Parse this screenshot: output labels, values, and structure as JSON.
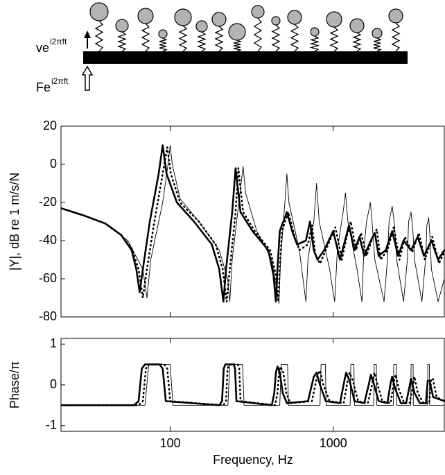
{
  "schematic": {
    "velocity_label": {
      "base": "ve",
      "sup": "i2πft"
    },
    "force_label": {
      "base": "Fe",
      "sup": "i2πft"
    }
  },
  "chart_data": [
    {
      "type": "line",
      "ylabel": "|Y|, dB re 1 m/s/N",
      "log_x": true,
      "show_xtick_labels": false,
      "xlim": [
        21.4,
        4800
      ],
      "ylim": [
        -80,
        20
      ],
      "xticks": [
        100,
        1000
      ],
      "yticks": [
        20,
        0,
        -20,
        -40,
        -60,
        -80
      ],
      "series": [
        {
          "color": "#000000",
          "line_width": 2.6,
          "dash": "none",
          "x": [
            21.4,
            30,
            40,
            50,
            58,
            62,
            65,
            68,
            75,
            85,
            90,
            95,
            110,
            140,
            180,
            200,
            212,
            220,
            240,
            252,
            258,
            270,
            320,
            400,
            430,
            445,
            455,
            470,
            520,
            560,
            600,
            680,
            720,
            760,
            800,
            880,
            1000,
            1100,
            1180,
            1250,
            1350,
            1450,
            1550,
            1700,
            1800,
            1900,
            2100,
            2300,
            2500,
            2700,
            3000,
            3300,
            3600,
            4000,
            4400,
            4800
          ],
          "values": [
            -23,
            -27,
            -31,
            -37,
            -45,
            -55,
            -67,
            -55,
            -30,
            -5,
            10,
            -5,
            -20,
            -30,
            -42,
            -55,
            -72,
            -55,
            -25,
            -2,
            -10,
            -25,
            -35,
            -45,
            -58,
            -72,
            -55,
            -35,
            -25,
            -35,
            -42,
            -40,
            -30,
            -45,
            -50,
            -45,
            -35,
            -50,
            -40,
            -32,
            -45,
            -38,
            -48,
            -40,
            -36,
            -48,
            -45,
            -35,
            -48,
            -40,
            -45,
            -38,
            -48,
            -40,
            -50,
            -45
          ]
        },
        {
          "color": "#000000",
          "line_width": 2.6,
          "dash": "1 5",
          "x": [
            21.4,
            30,
            40,
            50,
            58,
            64,
            68,
            72,
            80,
            90,
            96,
            101,
            115,
            150,
            190,
            210,
            222,
            232,
            252,
            262,
            268,
            280,
            330,
            410,
            445,
            460,
            470,
            485,
            530,
            580,
            620,
            700,
            740,
            780,
            830,
            900,
            1030,
            1130,
            1210,
            1280,
            1380,
            1480,
            1600,
            1750,
            1850,
            1950,
            2150,
            2350,
            2550,
            2750,
            3050,
            3350,
            3650,
            4050,
            4450,
            4800
          ],
          "values": [
            -23,
            -27,
            -31,
            -37,
            -44,
            -55,
            -70,
            -55,
            -30,
            -5,
            9,
            -5,
            -20,
            -30,
            -42,
            -55,
            -72,
            -55,
            -25,
            -2,
            -10,
            -25,
            -35,
            -45,
            -58,
            -72,
            -55,
            -35,
            -25,
            -38,
            -45,
            -42,
            -32,
            -48,
            -52,
            -45,
            -33,
            -50,
            -38,
            -30,
            -45,
            -36,
            -48,
            -38,
            -34,
            -50,
            -45,
            -33,
            -50,
            -38,
            -46,
            -36,
            -50,
            -38,
            -52,
            -46
          ]
        },
        {
          "color": "#000000",
          "line_width": 0.9,
          "dash": "none",
          "x": [
            21.4,
            40,
            55,
            68,
            72,
            76,
            90,
            97,
            100,
            103,
            115,
            150,
            200,
            225,
            232,
            240,
            268,
            280,
            290,
            340,
            420,
            465,
            475,
            505,
            520,
            535,
            620,
            680,
            700,
            760,
            790,
            820,
            950,
            1020,
            1060,
            1150,
            1190,
            1230,
            1400,
            1500,
            1540,
            1600,
            1690,
            1730,
            1800,
            2050,
            2150,
            2200,
            2300,
            2380,
            2450,
            2700,
            2850,
            2900,
            3000,
            3080,
            3150,
            3500,
            3700,
            3750,
            3850,
            3920,
            4000,
            4400,
            4800
          ],
          "values": [
            -23,
            -31,
            -40,
            -55,
            -70,
            -50,
            -20,
            0,
            10,
            0,
            -18,
            -30,
            -45,
            -60,
            -72,
            -50,
            -15,
            -1,
            -15,
            -35,
            -50,
            -73,
            -50,
            -20,
            -5,
            -20,
            -45,
            -72,
            -50,
            -30,
            -10,
            -30,
            -55,
            -72,
            -45,
            -25,
            -15,
            -30,
            -55,
            -72,
            -45,
            -30,
            -20,
            -30,
            -50,
            -72,
            -50,
            -30,
            -22,
            -32,
            -50,
            -72,
            -50,
            -30,
            -25,
            -35,
            -50,
            -72,
            -48,
            -32,
            -28,
            -38,
            -55,
            -72,
            -60
          ]
        }
      ]
    },
    {
      "type": "line",
      "ylabel": "Phase/π",
      "xlabel": "Frequency, Hz",
      "log_x": true,
      "show_xtick_labels": true,
      "xlim": [
        21.4,
        4800
      ],
      "ylim": [
        -1.14,
        1.14
      ],
      "xticks": [
        100,
        1000
      ],
      "yticks": [
        1,
        0,
        -1
      ],
      "series": [
        {
          "color": "#000000",
          "line_width": 2.6,
          "dash": "none",
          "x": [
            21.4,
            60,
            64,
            67,
            70,
            86,
            90,
            94,
            200,
            208,
            213,
            218,
            245,
            250,
            255,
            420,
            435,
            445,
            455,
            470,
            490,
            520,
            700,
            760,
            790,
            830,
            900,
            1100,
            1170,
            1200,
            1260,
            1350,
            1550,
            1650,
            1700,
            1780,
            1900,
            2150,
            2250,
            2300,
            2400,
            2600,
            2800,
            2950,
            3000,
            3150,
            3400,
            3700,
            3800,
            3900,
            4100,
            4800
          ],
          "values": [
            -0.5,
            -0.5,
            -0.4,
            0.4,
            0.5,
            0.5,
            0.4,
            -0.4,
            -0.5,
            -0.4,
            0.4,
            0.5,
            0.5,
            0.4,
            -0.4,
            -0.5,
            -0.2,
            0.3,
            0.45,
            0.3,
            -0.2,
            -0.45,
            -0.4,
            0.2,
            0.3,
            0,
            -0.4,
            -0.45,
            0.1,
            0.3,
            0.1,
            -0.4,
            -0.45,
            0,
            0.25,
            0,
            -0.4,
            -0.45,
            0.05,
            0.2,
            -0.1,
            -0.45,
            -0.45,
            0,
            0.15,
            -0.2,
            -0.45,
            -0.45,
            0.1,
            0.1,
            -0.3,
            -0.4
          ]
        },
        {
          "color": "#000000",
          "line_width": 2.6,
          "dash": "1 5",
          "x": [
            21.4,
            64,
            68,
            71,
            74,
            92,
            96,
            100,
            212,
            220,
            225,
            230,
            260,
            265,
            270,
            440,
            455,
            465,
            475,
            495,
            515,
            545,
            740,
            800,
            830,
            870,
            950,
            1160,
            1230,
            1260,
            1320,
            1420,
            1630,
            1730,
            1790,
            1870,
            2000,
            2250,
            2360,
            2420,
            2520,
            2730,
            2940,
            3100,
            3150,
            3300,
            3570,
            3880,
            3990,
            4090,
            4300,
            4800
          ],
          "values": [
            -0.5,
            -0.5,
            -0.4,
            0.4,
            0.5,
            0.5,
            0.4,
            -0.4,
            -0.5,
            -0.4,
            0.4,
            0.5,
            0.5,
            0.4,
            -0.4,
            -0.5,
            -0.2,
            0.3,
            0.45,
            0.3,
            -0.2,
            -0.45,
            -0.4,
            0.25,
            0.35,
            0,
            -0.4,
            -0.45,
            0.15,
            0.3,
            0.1,
            -0.4,
            -0.45,
            0,
            0.3,
            0,
            -0.4,
            -0.45,
            0.1,
            0.25,
            -0.1,
            -0.45,
            -0.45,
            0,
            0.2,
            -0.2,
            -0.45,
            -0.45,
            0.15,
            0.15,
            -0.3,
            -0.4
          ]
        },
        {
          "color": "#000000",
          "line_width": 0.9,
          "dash": "none",
          "x": [
            21.4,
            70,
            74,
            100,
            104,
            226,
            232,
            278,
            284,
            470,
            480,
            525,
            531,
            830,
            842,
            895,
            905,
            1270,
            1282,
            1340,
            1350,
            1770,
            1782,
            1840,
            1850,
            2340,
            2352,
            2440,
            2450,
            2990,
            3002,
            3090,
            3100,
            3790,
            3802,
            3890,
            3900,
            4800
          ],
          "values": [
            -0.5,
            -0.5,
            0.5,
            0.5,
            -0.5,
            -0.5,
            0.5,
            0.5,
            -0.5,
            -0.5,
            0.5,
            0.5,
            -0.5,
            -0.5,
            0.5,
            0.5,
            -0.5,
            -0.5,
            0.5,
            0.5,
            -0.5,
            -0.5,
            0.5,
            0.5,
            -0.5,
            -0.5,
            0.5,
            0.5,
            -0.5,
            -0.5,
            0.5,
            0.5,
            -0.5,
            -0.5,
            0.5,
            0.5,
            -0.5,
            -0.5
          ]
        }
      ]
    }
  ]
}
